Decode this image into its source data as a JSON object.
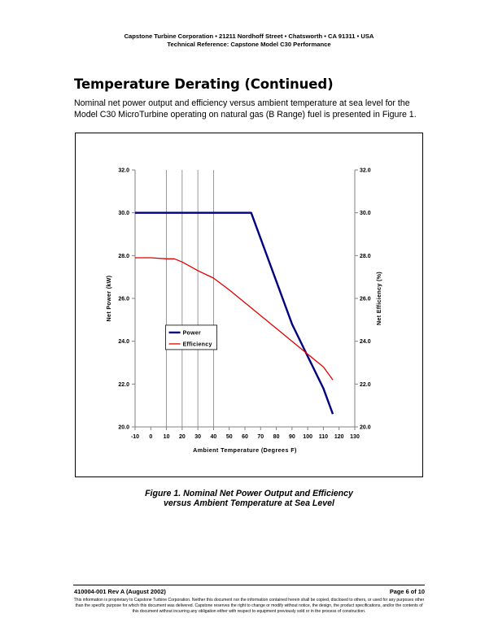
{
  "header": {
    "line1": "Capstone Turbine Corporation • 21211 Nordhoff Street • Chatsworth • CA 91311 • USA",
    "line2": "Technical Reference: Capstone Model C30 Performance"
  },
  "section_title": "Temperature Derating (Continued)",
  "intro_text": "Nominal net power output and efficiency versus ambient temperature at sea level for the Model C30 MicroTurbine operating on natural gas (B Range) fuel is presented in Figure 1.",
  "chart_data": {
    "type": "line",
    "xlabel": "Ambient Temperature (Degrees F)",
    "ylabel_left": "Net Power (kW)",
    "ylabel_right": "Net Efficiency (%)",
    "xlim": [
      -10,
      130
    ],
    "ylim_left": [
      20,
      32
    ],
    "ylim_right": [
      20,
      32
    ],
    "x_ticks": [
      -10,
      0,
      10,
      20,
      30,
      40,
      50,
      60,
      70,
      80,
      90,
      100,
      110,
      120,
      130
    ],
    "y_ticks_left": [
      "20.0",
      "22.0",
      "24.0",
      "26.0",
      "28.0",
      "30.0",
      "32.0"
    ],
    "y_ticks_right": [
      "20.0",
      "22.0",
      "24.0",
      "26.0",
      "28.0",
      "30.0",
      "32.0"
    ],
    "vertical_gridlines_x": [
      10,
      20,
      30,
      40
    ],
    "legend_position": "lower-left",
    "series": [
      {
        "name": "Power",
        "color": "#000080",
        "axis": "left",
        "x": [
          -10,
          0,
          10,
          20,
          30,
          40,
          50,
          60,
          64,
          70,
          80,
          90,
          100,
          110,
          116
        ],
        "y": [
          30.0,
          30.0,
          30.0,
          30.0,
          30.0,
          30.0,
          30.0,
          30.0,
          30.0,
          28.8,
          26.8,
          24.8,
          23.3,
          21.8,
          20.6
        ]
      },
      {
        "name": "Efficiency",
        "color": "#e00000",
        "axis": "right",
        "x": [
          -10,
          0,
          10,
          15,
          20,
          30,
          40,
          50,
          60,
          70,
          80,
          90,
          100,
          110,
          116
        ],
        "y": [
          27.9,
          27.9,
          27.85,
          27.85,
          27.7,
          27.3,
          26.95,
          26.4,
          25.8,
          25.2,
          24.6,
          24.0,
          23.4,
          22.8,
          22.2
        ]
      }
    ]
  },
  "caption": {
    "line1": "Figure 1. Nominal Net Power Output and Efficiency",
    "line2": "versus Ambient Temperature at Sea Level"
  },
  "footer": {
    "doc_id": "410004-001 Rev A (August 2002)",
    "page": "Page 6 of 10",
    "disclaimer": "This information is proprietary to Capstone Turbine Corporation. Neither this document nor the information contained herein shall be copied, disclosed to others, or used for any purposes other than the specific purpose for which this document was delivered. Capstone reserves the right to change or modify without notice, the design, the product specifications, and/or the contents of this document without incurring any obligation either with respect to equipment previously sold or in the process of construction."
  }
}
